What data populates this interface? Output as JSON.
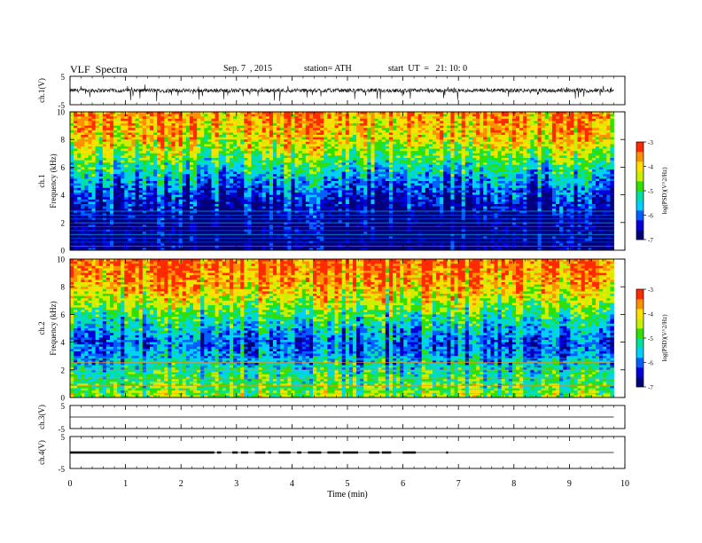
{
  "header": {
    "title": "VLF  Spectra",
    "date": "Sep. 7  , 2015",
    "station": "station= ATH",
    "start": "start  UT  =   21: 10: 0"
  },
  "chart_data": [
    {
      "type": "line",
      "ylabel": "ch.1(V)",
      "ylim": [
        -5,
        5
      ],
      "yticks": [
        "5",
        "-5"
      ],
      "description_values": "noisy waveform centred near 0 V with spikes to about -4 V",
      "x": [
        0,
        9.8
      ]
    },
    {
      "type": "heatmap",
      "ylabel": "Frequency  (kHz)",
      "channel_label": "ch.1",
      "ylim": [
        0,
        10
      ],
      "yticks": [
        "0",
        "2",
        "4",
        "6",
        "8",
        "10"
      ],
      "colorbar": {
        "label": "log(PSD)(V^2/Hz)",
        "ticks": [
          "-3",
          "-4",
          "-5",
          "-6",
          "-7"
        ],
        "range": [
          -7,
          -3
        ]
      },
      "profile_khz": [
        0,
        1,
        2,
        3,
        4,
        5,
        6,
        7,
        8,
        9,
        10
      ],
      "profile_logpsd": [
        -7,
        -7,
        -7,
        -6.6,
        -6.3,
        -5.8,
        -5.2,
        -4.6,
        -4.1,
        -3.8,
        -3.6
      ]
    },
    {
      "type": "heatmap",
      "ylabel": "Frequency  (kHz)",
      "channel_label": "ch.2",
      "ylim": [
        0,
        10
      ],
      "yticks": [
        "0",
        "2",
        "4",
        "6",
        "8",
        "10"
      ],
      "colorbar": {
        "label": "log(PSD)(V^2/Hz)",
        "ticks": [
          "-3",
          "-4",
          "-5",
          "-6",
          "-7"
        ],
        "range": [
          -7,
          -3
        ]
      },
      "profile_khz": [
        0,
        1,
        2,
        3,
        4,
        5,
        6,
        7,
        8,
        9,
        10
      ],
      "profile_logpsd": [
        -4.6,
        -4.9,
        -5.3,
        -5.8,
        -6.1,
        -5.6,
        -5.0,
        -4.4,
        -3.9,
        -3.6,
        -3.4
      ]
    },
    {
      "type": "line",
      "ylabel": "ch.3(V)",
      "ylim": [
        -5,
        5
      ],
      "yticks": [
        "5",
        "-5"
      ],
      "x": [
        0,
        9.8
      ],
      "y": [
        0,
        0
      ]
    },
    {
      "type": "line",
      "ylabel": "ch.4(V)",
      "ylim": [
        -5,
        5
      ],
      "yticks": [
        "5",
        "-5"
      ],
      "x": [
        0,
        9.8
      ],
      "y": [
        0,
        0
      ],
      "burst_until_min": 6.8
    }
  ],
  "xaxis": {
    "label": "Time  (min)",
    "xlim": [
      0,
      10
    ],
    "ticks": [
      "0",
      "1",
      "2",
      "3",
      "4",
      "5",
      "6",
      "7",
      "8",
      "9",
      "10"
    ]
  },
  "colors": {
    "colormap": [
      "#00007a",
      "#0000d8",
      "#0060ff",
      "#00d0ff",
      "#00e0a0",
      "#30e000",
      "#c8f000",
      "#ffe000",
      "#ff9000",
      "#ff2a00"
    ]
  }
}
